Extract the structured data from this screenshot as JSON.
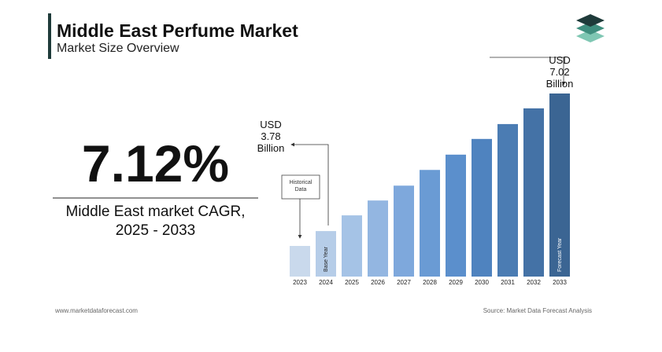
{
  "header": {
    "title": "Middle East Perfume Market",
    "subtitle": "Market Size Overview"
  },
  "kpi": {
    "value": "7.12%",
    "label": "Middle East market CAGR, 2025 - 2033"
  },
  "chart_data": {
    "type": "bar",
    "categories": [
      "2023",
      "2024",
      "2025",
      "2026",
      "2027",
      "2028",
      "2029",
      "2030",
      "2031",
      "2032",
      "2033"
    ],
    "values": [
      3.43,
      3.78,
      4.15,
      4.5,
      4.85,
      5.22,
      5.58,
      5.95,
      6.3,
      6.67,
      7.02
    ],
    "value_labels": [
      null,
      "USD 3.78 Billion",
      null,
      null,
      null,
      null,
      null,
      null,
      null,
      null,
      "USD 7.02 Billion"
    ],
    "colors": [
      "#c9d9ec",
      "#b6cde8",
      "#a5c3e6",
      "#93b6e1",
      "#7ea8dc",
      "#6a9bd4",
      "#5b8fcc",
      "#4f83bf",
      "#4b7cb3",
      "#4472a6",
      "#3b6593"
    ],
    "historical_label": "Historical Data",
    "base_year_label": "Base Year",
    "forecast_year_label": "Forecast Year"
  },
  "footer": {
    "website": "www.marketdataforecast.com",
    "source": "Source: Market Data Forecast Analysis"
  }
}
